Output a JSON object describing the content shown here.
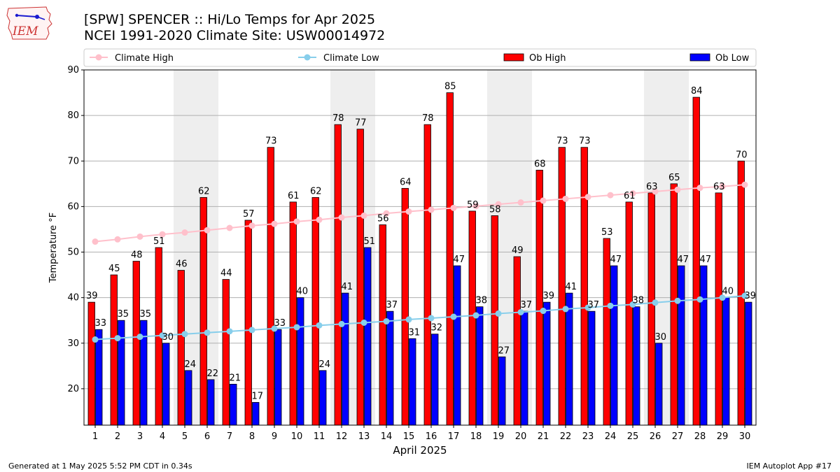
{
  "header": {
    "logo_text": "IEM",
    "title_line1": "[SPW] SPENCER :: Hi/Lo Temps for Apr 2025",
    "title_line2": "NCEI 1991-2020 Climate Site: USW00014972"
  },
  "footer": {
    "left": "Generated at 1 May 2025 5:52 PM CDT in 0.34s",
    "right": "IEM Autoplot App #17"
  },
  "colors": {
    "ob_high": "#ff0000",
    "ob_low": "#0000ff",
    "climate_high": "#ffc0cb",
    "climate_low": "#87ceeb",
    "weekend_shade": "#eeeeee",
    "grid": "#b0b0b0"
  },
  "chart_data": {
    "type": "bar",
    "xlabel": "April 2025",
    "ylabel": "Temperature °F",
    "ylim": [
      12,
      90
    ],
    "yticks": [
      20,
      30,
      40,
      50,
      60,
      70,
      80,
      90
    ],
    "grid": "horizontal",
    "legend_position": "top",
    "shaded_days": [
      [
        5,
        6
      ],
      [
        12,
        13
      ],
      [
        19,
        20
      ],
      [
        26,
        27
      ]
    ],
    "categories": [
      "1",
      "2",
      "3",
      "4",
      "5",
      "6",
      "7",
      "8",
      "9",
      "10",
      "11",
      "12",
      "13",
      "14",
      "15",
      "16",
      "17",
      "18",
      "19",
      "20",
      "21",
      "22",
      "23",
      "24",
      "25",
      "26",
      "27",
      "28",
      "29",
      "30"
    ],
    "series": [
      {
        "name": "Ob High",
        "kind": "bar",
        "values": [
          39,
          45,
          48,
          51,
          46,
          62,
          44,
          57,
          73,
          61,
          62,
          78,
          77,
          56,
          64,
          78,
          85,
          59,
          58,
          49,
          68,
          73,
          73,
          53,
          61,
          63,
          65,
          84,
          63,
          70
        ]
      },
      {
        "name": "Ob Low",
        "kind": "bar",
        "values": [
          33,
          35,
          35,
          30,
          24,
          22,
          21,
          17,
          33,
          40,
          24,
          41,
          51,
          37,
          31,
          32,
          47,
          38,
          27,
          37,
          39,
          41,
          37,
          47,
          38,
          30,
          47,
          47,
          40,
          39
        ]
      },
      {
        "name": "Climate High",
        "kind": "line",
        "values": [
          52.3,
          52.8,
          53.4,
          53.9,
          54.3,
          54.8,
          55.3,
          55.8,
          56.2,
          56.7,
          57.1,
          57.6,
          58.0,
          58.5,
          58.9,
          59.3,
          59.7,
          60.1,
          60.5,
          60.9,
          61.3,
          61.7,
          62.1,
          62.5,
          62.9,
          63.3,
          63.7,
          64.1,
          64.4,
          64.8
        ]
      },
      {
        "name": "Climate Low",
        "kind": "line",
        "values": [
          30.8,
          31.1,
          31.4,
          31.7,
          32.0,
          32.3,
          32.6,
          32.9,
          33.2,
          33.5,
          33.9,
          34.2,
          34.5,
          34.8,
          35.2,
          35.5,
          35.8,
          36.1,
          36.5,
          36.8,
          37.1,
          37.5,
          37.8,
          38.2,
          38.5,
          38.9,
          39.3,
          39.6,
          40.0,
          40.4
        ]
      }
    ]
  }
}
